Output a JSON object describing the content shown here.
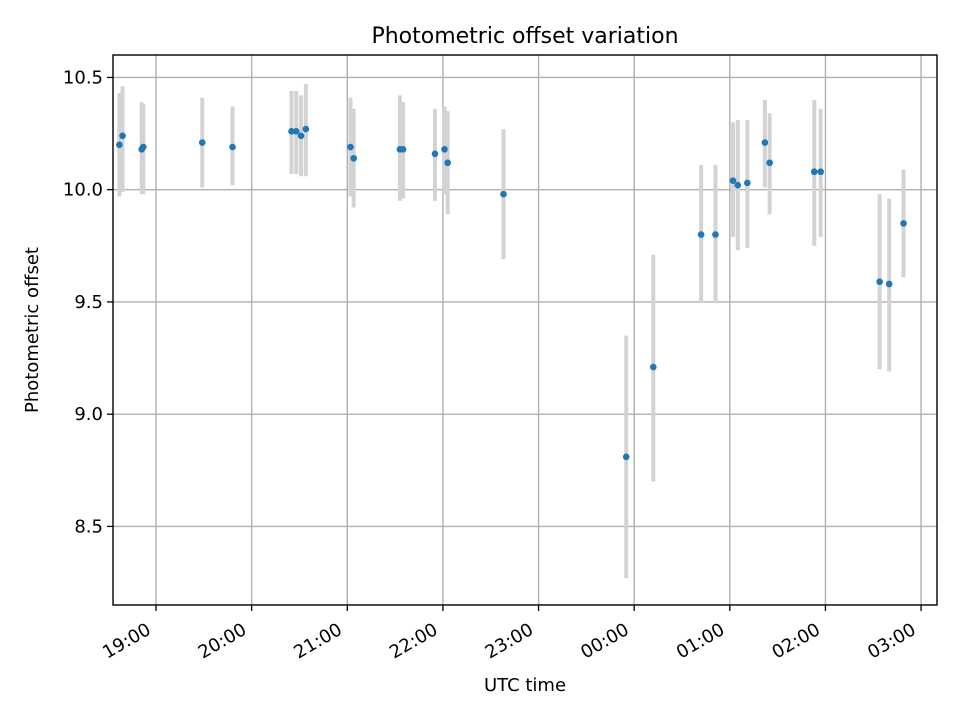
{
  "chart_data": {
    "type": "scatter",
    "title": "Photometric offset variation",
    "xlabel": "UTC time",
    "ylabel": "Photometric offset",
    "xlim": [
      "18:33",
      "03:10"
    ],
    "ylim": [
      8.15,
      10.6
    ],
    "x_ticks": [
      "19:00",
      "20:00",
      "21:00",
      "22:00",
      "23:00",
      "00:00",
      "01:00",
      "02:00",
      "03:00"
    ],
    "y_ticks": [
      "8.5",
      "9.0",
      "9.5",
      "10.0",
      "10.5"
    ],
    "grid": true,
    "point_color": "#1f77b4",
    "errorbar_color": "#d3d3d3",
    "series": [
      {
        "points": [
          {
            "time": "18:37",
            "y": 10.2,
            "ylow": 9.97,
            "yhigh": 10.43
          },
          {
            "time": "18:39",
            "y": 10.24,
            "ylow": 9.99,
            "yhigh": 10.46
          },
          {
            "time": "18:51",
            "y": 10.18,
            "ylow": 9.98,
            "yhigh": 10.39
          },
          {
            "time": "18:52",
            "y": 10.19,
            "ylow": 9.98,
            "yhigh": 10.38
          },
          {
            "time": "19:29",
            "y": 10.21,
            "ylow": 10.01,
            "yhigh": 10.41
          },
          {
            "time": "19:48",
            "y": 10.19,
            "ylow": 10.02,
            "yhigh": 10.37
          },
          {
            "time": "20:25",
            "y": 10.26,
            "ylow": 10.07,
            "yhigh": 10.44
          },
          {
            "time": "20:28",
            "y": 10.26,
            "ylow": 10.07,
            "yhigh": 10.44
          },
          {
            "time": "20:31",
            "y": 10.24,
            "ylow": 10.06,
            "yhigh": 10.42
          },
          {
            "time": "20:34",
            "y": 10.27,
            "ylow": 10.06,
            "yhigh": 10.47
          },
          {
            "time": "21:02",
            "y": 10.19,
            "ylow": 9.97,
            "yhigh": 10.41
          },
          {
            "time": "21:04",
            "y": 10.14,
            "ylow": 9.92,
            "yhigh": 10.36
          },
          {
            "time": "21:33",
            "y": 10.18,
            "ylow": 9.95,
            "yhigh": 10.42
          },
          {
            "time": "21:35",
            "y": 10.18,
            "ylow": 9.96,
            "yhigh": 10.39
          },
          {
            "time": "21:55",
            "y": 10.16,
            "ylow": 9.95,
            "yhigh": 10.36
          },
          {
            "time": "22:01",
            "y": 10.18,
            "ylow": 9.98,
            "yhigh": 10.37
          },
          {
            "time": "22:03",
            "y": 10.12,
            "ylow": 9.89,
            "yhigh": 10.35
          },
          {
            "time": "22:38",
            "y": 9.98,
            "ylow": 9.69,
            "yhigh": 10.27
          },
          {
            "time": "23:55",
            "y": 8.81,
            "ylow": 8.27,
            "yhigh": 9.35
          },
          {
            "time": "00:12",
            "y": 9.21,
            "ylow": 8.7,
            "yhigh": 9.71
          },
          {
            "time": "00:42",
            "y": 9.8,
            "ylow": 9.5,
            "yhigh": 10.11
          },
          {
            "time": "00:51",
            "y": 9.8,
            "ylow": 9.5,
            "yhigh": 10.11
          },
          {
            "time": "01:02",
            "y": 10.04,
            "ylow": 9.79,
            "yhigh": 10.3
          },
          {
            "time": "01:05",
            "y": 10.02,
            "ylow": 9.73,
            "yhigh": 10.31
          },
          {
            "time": "01:11",
            "y": 10.03,
            "ylow": 9.74,
            "yhigh": 10.31
          },
          {
            "time": "01:22",
            "y": 10.21,
            "ylow": 10.01,
            "yhigh": 10.4
          },
          {
            "time": "01:25",
            "y": 10.12,
            "ylow": 9.89,
            "yhigh": 10.34
          },
          {
            "time": "01:53",
            "y": 10.08,
            "ylow": 9.75,
            "yhigh": 10.4
          },
          {
            "time": "01:57",
            "y": 10.08,
            "ylow": 9.79,
            "yhigh": 10.36
          },
          {
            "time": "02:34",
            "y": 9.59,
            "ylow": 9.2,
            "yhigh": 9.98
          },
          {
            "time": "02:40",
            "y": 9.58,
            "ylow": 9.19,
            "yhigh": 9.96
          },
          {
            "time": "02:49",
            "y": 9.85,
            "ylow": 9.61,
            "yhigh": 10.09
          }
        ]
      }
    ]
  }
}
